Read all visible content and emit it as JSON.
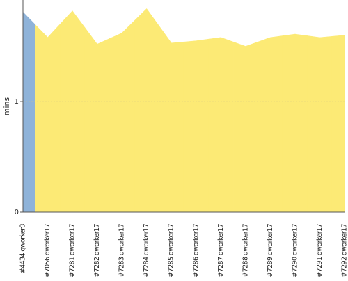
{
  "chart_data": {
    "type": "area",
    "y_label": "mins",
    "categories": [
      "#4434 qworker3",
      "#7056 qworker17",
      "#7281 qworker17",
      "#7282 qworker17",
      "#7283 qworker17",
      "#7284 qworker17",
      "#7285 qworker17",
      "#7286 qworker17",
      "#7287 qworker17",
      "#7288 qworker17",
      "#7289 qworker17",
      "#7290 qworker17",
      "#7291 qworker17",
      "#7292 qworker17"
    ],
    "values": [
      1.81,
      1.58,
      1.82,
      1.52,
      1.62,
      1.84,
      1.53,
      1.55,
      1.58,
      1.5,
      1.58,
      1.61,
      1.58,
      1.6
    ],
    "point_colors": [
      "#8fb3d9",
      "#fcea75",
      "#fcea75",
      "#fcea75",
      "#fcea75",
      "#fcea75",
      "#fcea75",
      "#fcea75",
      "#fcea75",
      "#fcea75",
      "#fcea75",
      "#fcea75",
      "#fcea75",
      "#fcea75"
    ],
    "ylim": [
      0,
      1.9
    ],
    "yticks": [
      0,
      1
    ],
    "grid": true
  }
}
